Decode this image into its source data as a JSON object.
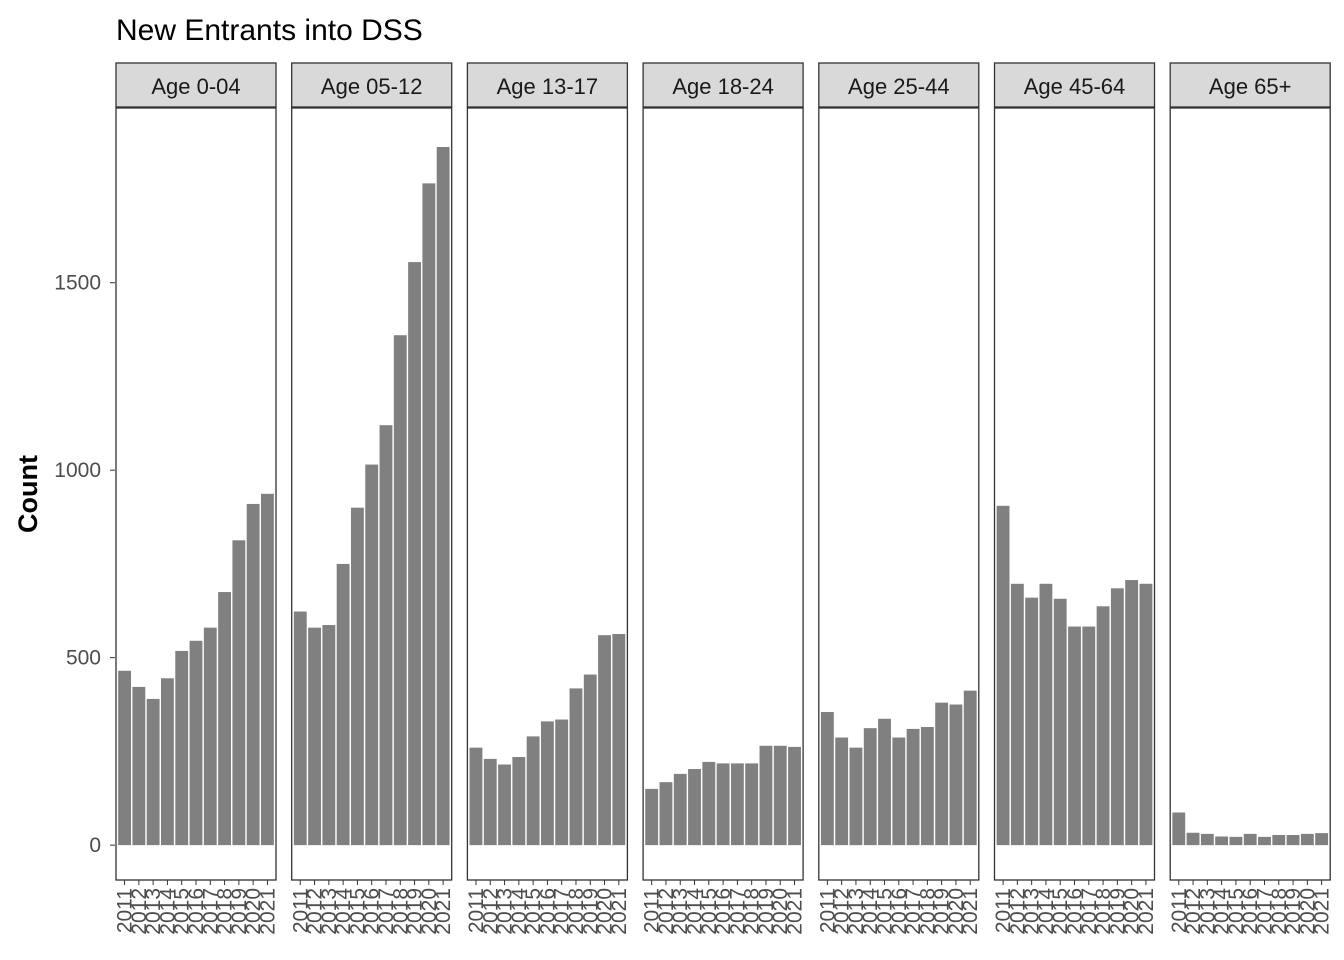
{
  "chart_data": {
    "type": "bar",
    "title": "New Entrants into DSS",
    "xlabel": "",
    "ylabel": "Count",
    "ylim": [
      -93,
      1966
    ],
    "yticks": [
      0,
      500,
      1000,
      1500
    ],
    "grid": false,
    "legend": "none",
    "bar_color": "#808080",
    "categories": [
      "2011",
      "2012",
      "2013",
      "2014",
      "2015",
      "2016",
      "2017",
      "2018",
      "2019",
      "2020",
      "2021"
    ],
    "panels": [
      {
        "name": "Age 0-04",
        "values": [
          465,
          422,
          390,
          445,
          518,
          545,
          580,
          675,
          813,
          910,
          937
        ]
      },
      {
        "name": "Age 05-12",
        "values": [
          623,
          580,
          587,
          750,
          900,
          1015,
          1120,
          1360,
          1555,
          1765,
          1862
        ]
      },
      {
        "name": "Age 13-17",
        "values": [
          260,
          230,
          215,
          235,
          290,
          330,
          335,
          418,
          455,
          560,
          563
        ]
      },
      {
        "name": "Age 18-24",
        "values": [
          150,
          168,
          190,
          203,
          222,
          218,
          218,
          218,
          265,
          265,
          262
        ]
      },
      {
        "name": "Age 25-44",
        "values": [
          355,
          287,
          260,
          312,
          337,
          287,
          310,
          315,
          380,
          375,
          412
        ]
      },
      {
        "name": "Age 45-64",
        "values": [
          905,
          697,
          660,
          697,
          657,
          583,
          583,
          637,
          685,
          707,
          697
        ]
      },
      {
        "name": "Age 65+",
        "values": [
          87,
          33,
          30,
          23,
          22,
          30,
          22,
          27,
          27,
          30,
          32
        ]
      }
    ]
  }
}
